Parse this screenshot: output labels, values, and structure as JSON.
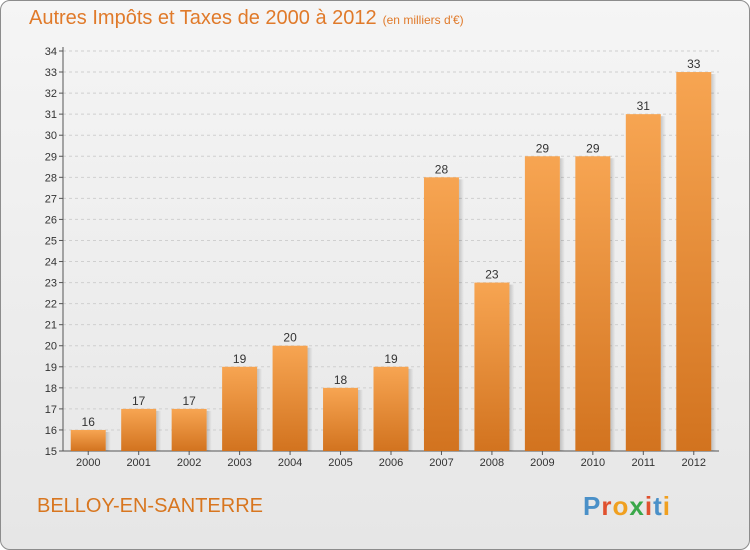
{
  "title": "Autres Impôts et Taxes de 2000 à 2012",
  "unit": "(en milliers d'€)",
  "commune": "BELLOY-EN-SANTERRE",
  "logo": [
    "P",
    "r",
    "o",
    "x",
    "i",
    "t",
    "i"
  ],
  "colors": {
    "bar_top": "#f7a552",
    "bar_bottom": "#d2731f",
    "accent": "#e07a2a"
  },
  "chart_data": {
    "type": "bar",
    "title": "Autres Impôts et Taxes de 2000 à 2012",
    "categories": [
      "2000",
      "2001",
      "2002",
      "2003",
      "2004",
      "2005",
      "2006",
      "2007",
      "2008",
      "2009",
      "2010",
      "2011",
      "2012"
    ],
    "values": [
      16,
      17,
      17,
      19,
      20,
      18,
      19,
      28,
      23,
      29,
      29,
      31,
      33
    ],
    "ylim": [
      15,
      34
    ],
    "yticks": [
      15,
      16,
      17,
      18,
      19,
      20,
      21,
      22,
      23,
      24,
      25,
      26,
      27,
      28,
      29,
      30,
      31,
      32,
      33,
      34
    ],
    "grid": true
  }
}
